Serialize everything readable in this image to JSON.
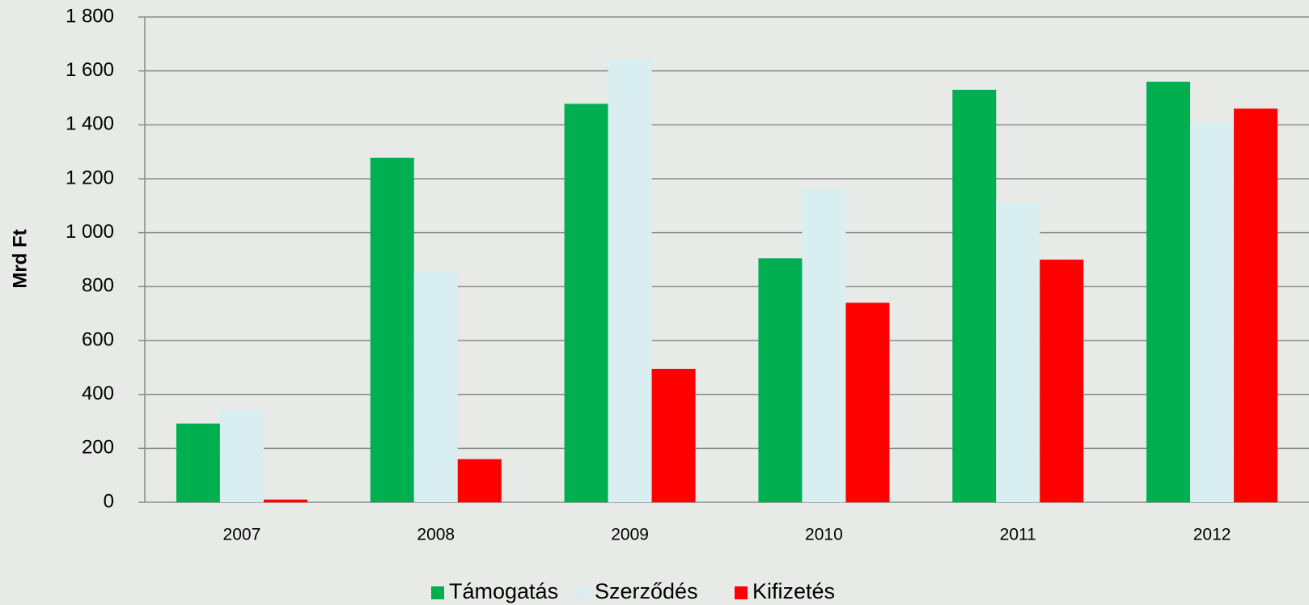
{
  "chart_data": {
    "type": "bar",
    "y_label": "Mrd Ft",
    "categories": [
      "2007",
      "2008",
      "2009",
      "2010",
      "2011",
      "2012"
    ],
    "series": [
      {
        "name": "Támogatás",
        "color": "#00b050",
        "values": [
          292,
          1278,
          1478,
          905,
          1530,
          1560
        ]
      },
      {
        "name": "Szerződés",
        "color": "#d9eef0",
        "values": [
          342,
          855,
          1645,
          1160,
          1110,
          1405
        ]
      },
      {
        "name": "Kifizetés",
        "color": "#ff0000",
        "values": [
          10,
          160,
          495,
          740,
          900,
          1460
        ]
      }
    ],
    "ylim": [
      0,
      1800
    ],
    "yticks": [
      0,
      200,
      400,
      600,
      800,
      {
        "value": 1000,
        "label": "1 000"
      },
      {
        "value": 1200,
        "label": "1 200"
      },
      {
        "value": 1400,
        "label": "1 400"
      },
      {
        "value": 1600,
        "label": "1 600"
      },
      {
        "value": 1800,
        "label": "1 800"
      }
    ],
    "grid": true,
    "legend": "bottom"
  }
}
